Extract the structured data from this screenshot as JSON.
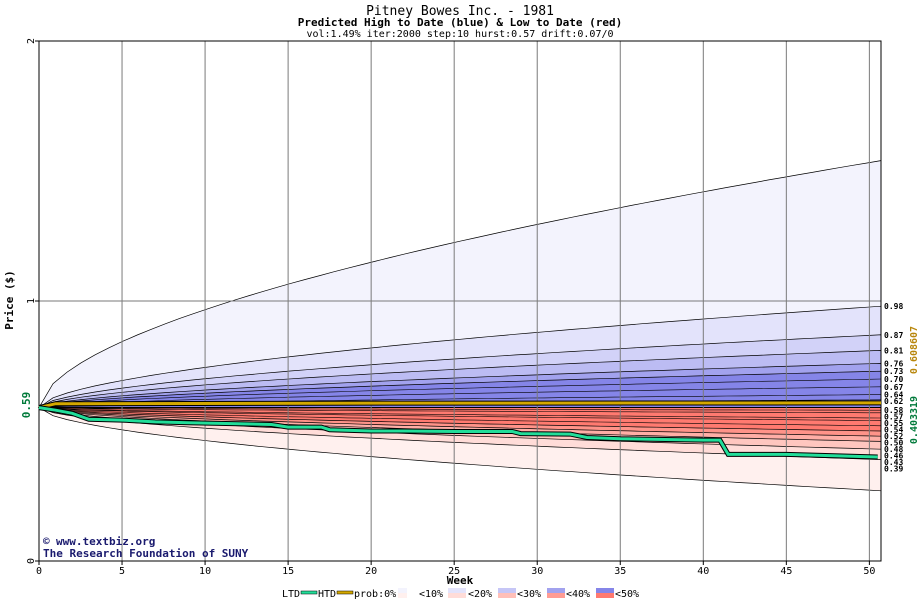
{
  "chart_data": {
    "type": "area",
    "title": "Pitney Bowes Inc. - 1981",
    "subtitle": "Predicted High to Date (blue) &  Low to Date (red)",
    "params": "vol:1.49% iter:2000 step:10 hurst:0.57 drift:0.07/0",
    "xlabel": "Week",
    "ylabel": "Price ($)",
    "xlim": [
      0,
      50.7
    ],
    "ylim": [
      0,
      2
    ],
    "x_ticks": [
      0,
      5,
      10,
      15,
      20,
      25,
      30,
      35,
      40,
      45,
      50
    ],
    "y_ticks": [
      0,
      1,
      2
    ],
    "start_price": 0.59,
    "start_label": "0.59",
    "grid": true,
    "right_labels": [
      "0.98",
      "0.87",
      "0.81",
      "0.76",
      "0.73",
      "0.70",
      "0.67",
      "0.64",
      "0.62",
      "0.58",
      "0.57",
      "0.55",
      "0.54",
      "0.52",
      "0.50",
      "0.48",
      "0.46",
      "0.43",
      "0.39"
    ],
    "right_values": [
      0.98,
      0.87,
      0.81,
      0.76,
      0.73,
      0.7,
      0.67,
      0.64,
      0.62,
      0.58,
      0.57,
      0.55,
      0.54,
      0.52,
      0.5,
      0.48,
      0.46,
      0.43,
      0.39
    ],
    "outer_high_end": 1.54,
    "outer_low_end": 0.27,
    "htd_value": 0.608607,
    "htd_label": "0.608607",
    "ltd_value": 0.403319,
    "ltd_label": "0.403319",
    "ltd_series": [
      [
        0,
        0.59
      ],
      [
        1,
        0.58
      ],
      [
        2,
        0.568
      ],
      [
        3,
        0.545
      ],
      [
        5,
        0.542
      ],
      [
        7,
        0.535
      ],
      [
        9,
        0.532
      ],
      [
        12,
        0.528
      ],
      [
        14,
        0.525
      ],
      [
        15,
        0.515
      ],
      [
        17,
        0.515
      ],
      [
        17.5,
        0.505
      ],
      [
        20,
        0.5
      ],
      [
        22,
        0.5
      ],
      [
        25,
        0.498
      ],
      [
        28.5,
        0.498
      ],
      [
        29,
        0.49
      ],
      [
        32,
        0.488
      ],
      [
        33,
        0.475
      ],
      [
        35,
        0.47
      ],
      [
        40,
        0.465
      ],
      [
        41,
        0.465
      ],
      [
        41.5,
        0.41
      ],
      [
        45,
        0.41
      ],
      [
        50.5,
        0.4
      ]
    ],
    "htd_series": [
      [
        0,
        0.59
      ],
      [
        1,
        0.605
      ],
      [
        17,
        0.607
      ],
      [
        50.7,
        0.608
      ]
    ]
  },
  "credit": {
    "line1": "www.textbiz.org",
    "line2": "The Research Foundation of SUNY"
  },
  "legend": {
    "ltd": "LTD",
    "htd": "HTD",
    "prob": "prob:0%",
    "p10": "<10%",
    "p20": "<20%",
    "p30": "<30%",
    "p40": "<40%",
    "p50": "<50%"
  },
  "colors": {
    "ltd": "#22dd99",
    "htd": "#d4a800",
    "grid": "#7a7a7a",
    "blue_bands": [
      "#f3f3fd",
      "#e3e3fb",
      "#d2d2f8",
      "#bcbcf3",
      "#a2a2ee",
      "#8585e8"
    ],
    "red_bands": [
      "#fff0ee",
      "#ffdcd8",
      "#ffc6bf",
      "#ffaea6",
      "#ff9389",
      "#ff7a70"
    ]
  }
}
